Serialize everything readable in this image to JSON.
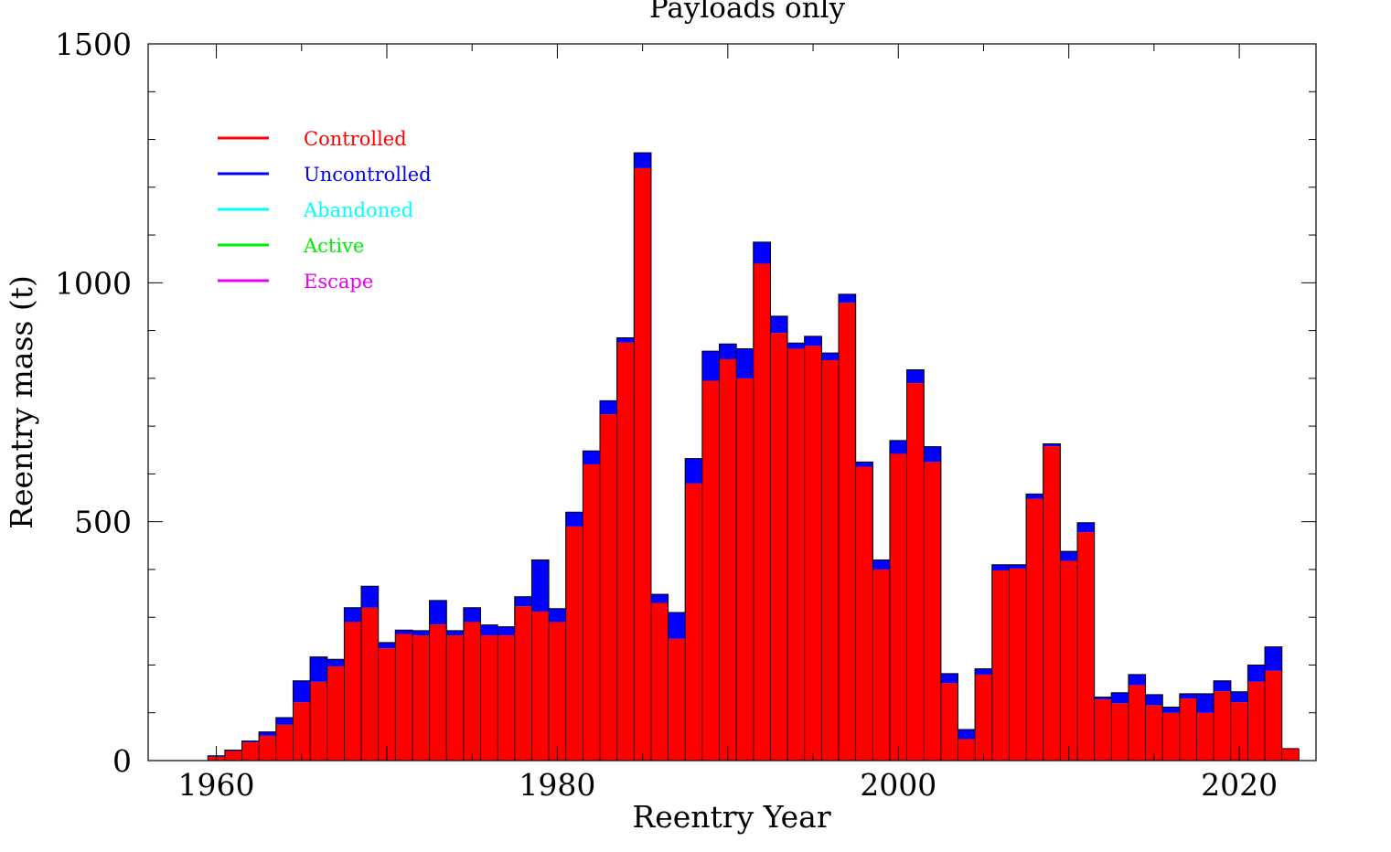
{
  "chart_data": {
    "type": "bar",
    "stacked": true,
    "title": "Payloads only",
    "xlabel": "Reentry Year",
    "ylabel": "Reentry mass (t)",
    "xlim": [
      1956,
      2024.5
    ],
    "ylim": [
      0,
      1500
    ],
    "x_ticks": [
      1960,
      1980,
      2000,
      2020
    ],
    "y_ticks": [
      0,
      500,
      1000,
      1500
    ],
    "legend_position": "top-left",
    "legend": [
      {
        "name": "Controlled",
        "color": "#ff0000"
      },
      {
        "name": "Uncontrolled",
        "color": "#0000ff"
      },
      {
        "name": "Abandoned",
        "color": "#00ffff"
      },
      {
        "name": "Active",
        "color": "#00ee00"
      },
      {
        "name": "Escape",
        "color": "#ee00ee"
      }
    ],
    "years": [
      1957,
      1958,
      1959,
      1960,
      1961,
      1962,
      1963,
      1964,
      1965,
      1966,
      1967,
      1968,
      1969,
      1970,
      1971,
      1972,
      1973,
      1974,
      1975,
      1976,
      1977,
      1978,
      1979,
      1980,
      1981,
      1982,
      1983,
      1984,
      1985,
      1986,
      1987,
      1988,
      1989,
      1990,
      1991,
      1992,
      1993,
      1994,
      1995,
      1996,
      1997,
      1998,
      1999,
      2000,
      2001,
      2002,
      2003,
      2004,
      2005,
      2006,
      2007,
      2008,
      2009,
      2010,
      2011,
      2012,
      2013,
      2014,
      2015,
      2016,
      2017,
      2018,
      2019,
      2020,
      2021,
      2022,
      2023
    ],
    "series": [
      {
        "name": "Controlled",
        "color": "#ff0000",
        "values": [
          0,
          0,
          0,
          8,
          20,
          38,
          52,
          75,
          122,
          165,
          197,
          290,
          320,
          235,
          265,
          262,
          285,
          262,
          290,
          262,
          262,
          323,
          312,
          290,
          490,
          620,
          725,
          875,
          1240,
          330,
          255,
          580,
          795,
          840,
          800,
          1040,
          895,
          862,
          868,
          838,
          958,
          615,
          400,
          642,
          790,
          625,
          162,
          45,
          180,
          398,
          402,
          548,
          658,
          418,
          478,
          128,
          120,
          158,
          116,
          100,
          130,
          100,
          145,
          122,
          165,
          188,
          25
        ]
      },
      {
        "name": "Uncontrolled",
        "color": "#0000ff",
        "values": [
          0,
          0,
          0,
          2,
          2,
          3,
          8,
          15,
          45,
          52,
          15,
          30,
          45,
          12,
          8,
          10,
          50,
          10,
          30,
          22,
          18,
          20,
          108,
          28,
          30,
          28,
          28,
          10,
          32,
          18,
          55,
          52,
          62,
          32,
          62,
          45,
          35,
          12,
          20,
          15,
          18,
          10,
          20,
          28,
          28,
          32,
          20,
          20,
          12,
          12,
          8,
          10,
          5,
          20,
          20,
          5,
          22,
          22,
          22,
          12,
          10,
          40,
          22,
          22,
          35,
          50,
          0
        ]
      }
    ]
  }
}
